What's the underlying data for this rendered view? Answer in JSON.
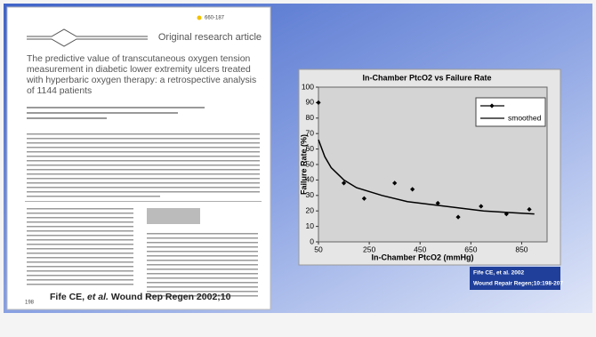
{
  "paper": {
    "code": "660-187",
    "section": "Original research article",
    "title_lines": [
      "The predictive value of transcutaneous oxygen tension",
      "measurement in diabetic lower extremity ulcers treated",
      "with hyperbaric oxygen therapy: a retrospective analysis",
      "of 1144 patients"
    ],
    "page": "198",
    "caption_start": "Fife CE, ",
    "caption_em": "et al.",
    "caption_end": " Wound Rep Regen 2002;10"
  },
  "citation": [
    "Fife CE, et al. 2002",
    "Wound Repair Regen;10:198-207"
  ],
  "chart_data": {
    "type": "scatter",
    "title": "In-Chamber PtcO2 vs Failure Rate",
    "x_label": "In-Chamber PtcO2 (mmHg)",
    "y_label": "Failure Rate (%)",
    "xlim": [
      50,
      950
    ],
    "ylim": [
      0,
      100
    ],
    "xticks": [
      50,
      250,
      450,
      650,
      850
    ],
    "yticks": [
      0,
      10,
      20,
      30,
      40,
      50,
      60,
      70,
      80,
      90,
      100
    ],
    "grid": false,
    "legend": "upper right",
    "series": [
      {
        "color": "#000000",
        "marker": "diamond",
        "line": false,
        "x": [
          50,
          150,
          230,
          350,
          420,
          520,
          600,
          690,
          790,
          880
        ],
        "values": [
          90,
          38,
          28,
          38,
          34,
          25,
          16,
          23,
          18,
          21
        ]
      },
      {
        "name": "smoothed",
        "color": "#000000",
        "marker": "none",
        "line": true,
        "x": [
          50,
          75,
          100,
          150,
          200,
          300,
          400,
          500,
          600,
          700,
          800,
          900
        ],
        "values": [
          66,
          55,
          48,
          40,
          35,
          30,
          26,
          24,
          22,
          20,
          19,
          18
        ]
      }
    ]
  }
}
